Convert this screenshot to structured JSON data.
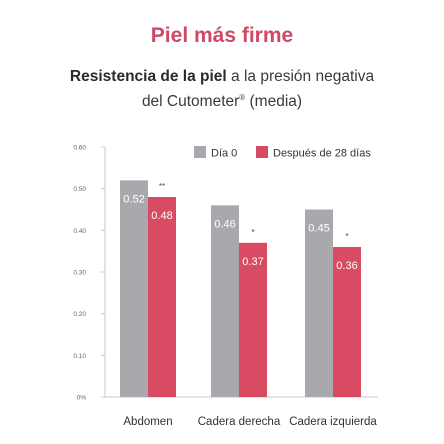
{
  "header": {
    "title": "Piel más firme",
    "subtitle_bold": "Resistencia de la piel",
    "subtitle_rest": " a la presión negativa",
    "subtitle_line2": "del Cutometer",
    "subtitle_mark": "®",
    "subtitle_end": " (media)"
  },
  "colors": {
    "title": "#cc4a66",
    "day0": "#a9a9ad",
    "day28": "#d94a63"
  },
  "chart_data": {
    "type": "bar",
    "title": "Resistencia de la piel a la presión negativa del Cutometer® (media)",
    "categories": [
      "Abdomen",
      "Cadera derecha",
      "Cadera izquierda"
    ],
    "series": [
      {
        "name": "Día 0",
        "values": [
          0.52,
          0.46,
          0.45
        ],
        "labels": [
          "0.52",
          "0.46",
          "0.45"
        ]
      },
      {
        "name": "Después de 28 días",
        "values": [
          0.48,
          0.37,
          0.36
        ],
        "labels": [
          "0.48",
          "0.37",
          "0.36"
        ]
      }
    ],
    "significance": [
      "**",
      "*",
      "*"
    ],
    "yticks": [
      0,
      0.1,
      0.2,
      0.3,
      0.4,
      0.5,
      0.6
    ],
    "ytick_labels": [
      "0%",
      "0.10",
      "0.20",
      "0.30",
      "0.40",
      "0.50",
      "0.60"
    ],
    "ylim": [
      0,
      0.6
    ],
    "legend_position": "top-right",
    "grid": false
  }
}
